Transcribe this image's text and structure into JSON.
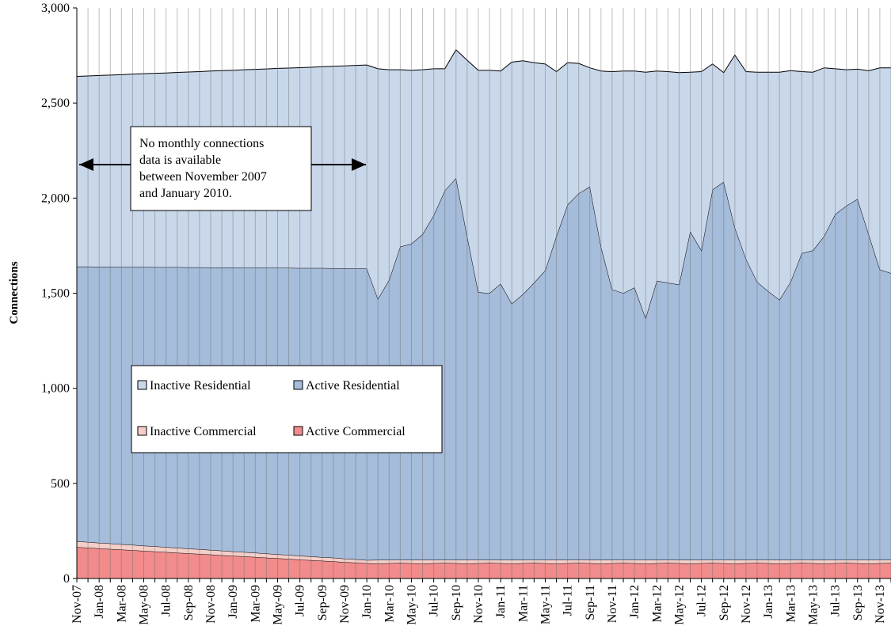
{
  "chart_data": {
    "type": "stacked-area",
    "y_label": "Connections",
    "annotation": [
      "No monthly connections",
      "data is  available",
      "between November 2007",
      "and January 2010."
    ],
    "categories": [
      "Nov-07",
      null,
      "Jan-08",
      null,
      "Mar-08",
      null,
      "May-08",
      null,
      "Jul-08",
      null,
      "Sep-08",
      null,
      "Nov-08",
      null,
      "Jan-09",
      null,
      "Mar-09",
      null,
      "May-09",
      null,
      "Jul-09",
      null,
      "Sep-09",
      null,
      "Nov-09",
      null,
      "Jan-10",
      null,
      "Mar-10",
      null,
      "May-10",
      null,
      "Jul-10",
      null,
      "Sep-10",
      null,
      "Nov-10",
      null,
      "Jan-11",
      null,
      "Mar-11",
      null,
      "May-11",
      null,
      "Jul-11",
      null,
      "Sep-11",
      null,
      "Nov-11",
      null,
      "Jan-12",
      null,
      "Mar-12",
      null,
      "May-12",
      null,
      "Jul-12",
      null,
      "Sep-12",
      null,
      "Nov-12",
      null,
      "Jan-13",
      null,
      "Mar-13",
      null,
      "May-13",
      null,
      "Jul-13",
      null,
      "Sep-13",
      null,
      "Nov-13",
      null
    ],
    "series": [
      {
        "name": "Active Commercial",
        "color": "#f28b8b",
        "values": [
          165,
          162,
          158,
          155,
          152,
          149,
          145,
          142,
          139,
          135,
          132,
          129,
          126,
          122,
          119,
          116,
          113,
          109,
          106,
          103,
          99,
          96,
          93,
          90,
          86,
          83,
          80,
          78,
          80,
          82,
          80,
          78,
          80,
          82,
          80,
          78,
          80,
          82,
          80,
          78,
          80,
          82,
          80,
          78,
          80,
          82,
          80,
          78,
          80,
          82,
          80,
          78,
          80,
          82,
          80,
          78,
          80,
          82,
          80,
          78,
          80,
          82,
          80,
          78,
          80,
          82,
          80,
          78,
          80,
          82,
          80,
          78,
          80,
          82
        ]
      },
      {
        "name": "Inactive Commercial",
        "color": "#f4cfc9",
        "values": [
          30,
          30,
          29,
          29,
          28,
          28,
          27,
          27,
          26,
          26,
          25,
          25,
          24,
          24,
          23,
          23,
          22,
          22,
          21,
          21,
          20,
          20,
          19,
          19,
          18,
          18,
          17,
          20,
          18,
          16,
          18,
          20,
          18,
          16,
          18,
          20,
          18,
          16,
          18,
          20,
          18,
          16,
          18,
          20,
          18,
          16,
          18,
          20,
          18,
          16,
          18,
          20,
          18,
          16,
          18,
          20,
          18,
          16,
          18,
          20,
          18,
          16,
          18,
          20,
          18,
          16,
          18,
          20,
          18,
          16,
          18,
          20,
          18,
          16
        ]
      },
      {
        "name": "Active Residential",
        "color": "#a5bcda",
        "values": [
          1445,
          1448,
          1452,
          1455,
          1458,
          1461,
          1466,
          1468,
          1472,
          1476,
          1479,
          1482,
          1485,
          1489,
          1493,
          1495,
          1499,
          1503,
          1506,
          1509,
          1513,
          1516,
          1520,
          1522,
          1527,
          1529,
          1533,
          1372,
          1472,
          1647,
          1662,
          1712,
          1812,
          1942,
          2007,
          1702,
          1407,
          1402,
          1452,
          1347,
          1397,
          1457,
          1522,
          1702,
          1867,
          1927,
          1962,
          1647,
          1422,
          1402,
          1432,
          1272,
          1467,
          1457,
          1447,
          1727,
          1627,
          1947,
          1987,
          1747,
          1582,
          1462,
          1412,
          1367,
          1462,
          1612,
          1627,
          1702,
          1817,
          1862,
          1897,
          1712,
          1527,
          1507
        ]
      },
      {
        "name": "Inactive Residential",
        "color": "#c9d7ea",
        "values": [
          1000,
          1002,
          1006,
          1008,
          1011,
          1014,
          1016,
          1019,
          1021,
          1024,
          1027,
          1029,
          1033,
          1035,
          1037,
          1041,
          1043,
          1045,
          1049,
          1051,
          1054,
          1056,
          1059,
          1062,
          1064,
          1068,
          1070,
          1210,
          1105,
          930,
          912,
          865,
          770,
          640,
          675,
          925,
          1167,
          1172,
          1118,
          1270,
          1227,
          1157,
          1085,
          865,
          747,
          683,
          625,
          923,
          1145,
          1168,
          1138,
          1292,
          1103,
          1110,
          1115,
          837,
          940,
          660,
          575,
          907,
          985,
          1102,
          1152,
          1197,
          1110,
          955,
          937,
          885,
          765,
          715,
          683,
          860,
          1060,
          1080
        ]
      }
    ],
    "ylim": [
      0,
      3000
    ],
    "yticks": [
      0,
      500,
      {
        "value": 1000,
        "label": "1,000"
      },
      {
        "value": 1500,
        "label": "1,500"
      },
      {
        "value": 2000,
        "label": "2,000"
      },
      {
        "value": 2500,
        "label": "2,500"
      },
      {
        "value": 3000,
        "label": "3,000"
      }
    ],
    "x_grid": true
  }
}
